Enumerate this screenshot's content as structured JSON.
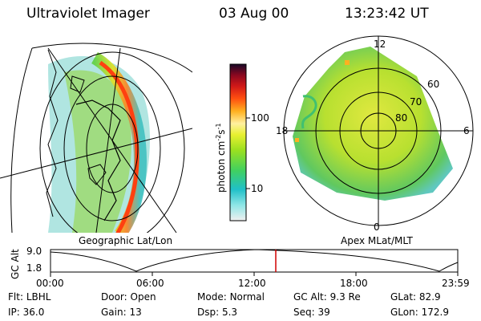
{
  "header": {
    "title": "Ultraviolet Imager",
    "date": "03 Aug 00",
    "time": "13:23:42 UT"
  },
  "left_panel": {
    "label": "Geographic Lat/Lon"
  },
  "right_panel": {
    "label": "Apex MLat/MLT",
    "mlt_labels": [
      "12",
      "18",
      "6",
      "0"
    ],
    "lat_labels": [
      "60",
      "70",
      "80"
    ]
  },
  "colorbar": {
    "unit_label": "photon cm",
    "unit_sup1": "-2",
    "unit_mid": "s",
    "unit_sup2": "-1",
    "ticks": [
      "100",
      "10"
    ]
  },
  "altitude_plot": {
    "ylabel": "GC Alt",
    "yticks": [
      "9.0",
      "1.8"
    ],
    "xticks": [
      "00:00",
      "06:00",
      "12:00",
      "18:00",
      "23:59"
    ],
    "marker_color": "#d00000"
  },
  "footer": {
    "row1": [
      {
        "label": "Flt:",
        "value": "LBHL"
      },
      {
        "label": "Door:",
        "value": "Open"
      },
      {
        "label": "Mode:",
        "value": "Normal"
      },
      {
        "label": "GC Alt:",
        "value": "9.3 Re"
      },
      {
        "label": "GLat:",
        "value": "82.9"
      }
    ],
    "row2": [
      {
        "label": "IP:",
        "value": "36.0"
      },
      {
        "label": "Gain:",
        "value": "13"
      },
      {
        "label": "Dsp:",
        "value": "5.3"
      },
      {
        "label": "Seq:",
        "value": "39"
      },
      {
        "label": "GLon:",
        "value": "172.9"
      }
    ]
  }
}
